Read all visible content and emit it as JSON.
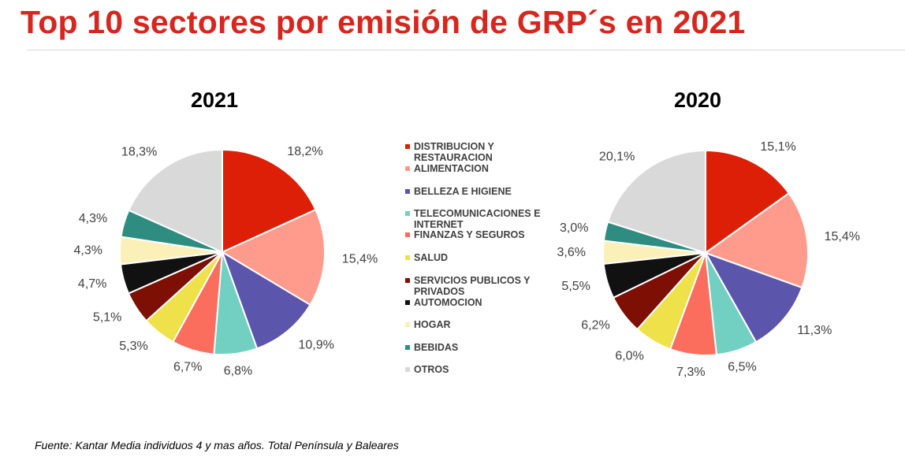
{
  "title": "Top 10 sectores por emisión de GRP´s en 2021",
  "source": "Fuente: Kantar Media individuos 4 y mas años. Total Península y Baleares",
  "legend": [
    {
      "label": "DISTRIBUCION Y RESTAURACION",
      "color": "#dc1f06"
    },
    {
      "label": "ALIMENTACION",
      "color": "#ff9b8c"
    },
    {
      "label": "BELLEZA E HIGIENE",
      "color": "#5c55ac"
    },
    {
      "label": "TELECOMUNICACIONES E INTERNET",
      "color": "#72d0c2"
    },
    {
      "label": "FINANZAS Y SEGUROS",
      "color": "#fb6d5d"
    },
    {
      "label": "SALUD",
      "color": "#efe14a"
    },
    {
      "label": "SERVICIOS PUBLICOS Y PRIVADOS",
      "color": "#7d0f04"
    },
    {
      "label": "AUTOMOCION",
      "color": "#111111"
    },
    {
      "label": "HOGAR",
      "color": "#fbf0b8"
    },
    {
      "label": "BEBIDAS",
      "color": "#2f8c80"
    },
    {
      "label": "OTROS",
      "color": "#d9d9d9"
    }
  ],
  "chart_data": [
    {
      "type": "pie",
      "title": "2021",
      "categories": [
        "DISTRIBUCION Y RESTAURACION",
        "ALIMENTACION",
        "BELLEZA E HIGIENE",
        "TELECOMUNICACIONES E INTERNET",
        "FINANZAS Y SEGUROS",
        "SALUD",
        "SERVICIOS PUBLICOS Y PRIVADOS",
        "AUTOMOCION",
        "HOGAR",
        "BEBIDAS",
        "OTROS"
      ],
      "values": [
        18.2,
        15.4,
        10.9,
        6.8,
        6.7,
        5.3,
        5.1,
        4.7,
        4.3,
        4.3,
        18.3
      ],
      "labels": [
        "18,2%",
        "15,4%",
        "10,9%",
        "6,8%",
        "6,7%",
        "5,3%",
        "5,1%",
        "4,7%",
        "4,3%",
        "4,3%",
        "18,3%"
      ]
    },
    {
      "type": "pie",
      "title": "2020",
      "categories": [
        "DISTRIBUCION Y RESTAURACION",
        "ALIMENTACION",
        "BELLEZA E HIGIENE",
        "TELECOMUNICACIONES E INTERNET",
        "FINANZAS Y SEGUROS",
        "SALUD",
        "SERVICIOS PUBLICOS Y PRIVADOS",
        "AUTOMOCION",
        "HOGAR",
        "BEBIDAS",
        "OTROS"
      ],
      "values": [
        15.1,
        15.4,
        11.3,
        6.5,
        7.3,
        6.0,
        6.2,
        5.5,
        3.6,
        3.0,
        20.1
      ],
      "labels": [
        "15,1%",
        "15,4%",
        "11,3%",
        "6,5%",
        "7,3%",
        "6,0%",
        "6,2%",
        "5,5%",
        "3,6%",
        "3,0%",
        "20,1%"
      ]
    }
  ]
}
